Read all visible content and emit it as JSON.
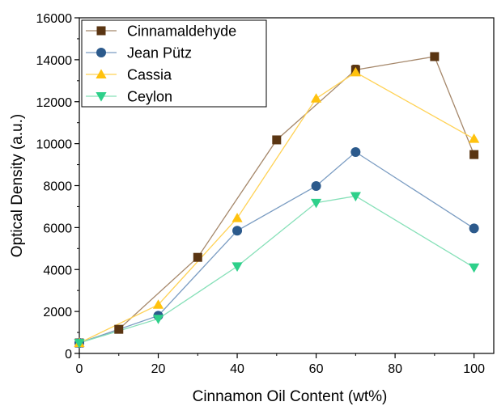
{
  "chart_data": {
    "type": "line",
    "xlabel": "Cinnamon Oil Content (wt%)",
    "ylabel": "Optical Density (a.u.)",
    "xlim": [
      0,
      105
    ],
    "ylim": [
      0,
      16000
    ],
    "xticks": [
      "0",
      "20",
      "40",
      "60",
      "80",
      "100"
    ],
    "yticks": [
      "0",
      "2000",
      "4000",
      "6000",
      "8000",
      "10000",
      "12000",
      "14000",
      "16000"
    ],
    "grid": false,
    "legend_position": "top-left",
    "series": [
      {
        "name": "Cinnamaldehyde",
        "marker": "square",
        "color": "#5a3512",
        "line_color": "#a5876a",
        "x": [
          0,
          10,
          30,
          50,
          70,
          90,
          100
        ],
        "y": [
          500,
          1150,
          4580,
          10180,
          13520,
          14150,
          9480
        ]
      },
      {
        "name": "Jean Pütz",
        "marker": "circle",
        "color": "#2c5a8c",
        "line_color": "#7a9cc2",
        "x": [
          0,
          20,
          40,
          60,
          70,
          100
        ],
        "y": [
          500,
          1800,
          5850,
          7980,
          9600,
          5960
        ]
      },
      {
        "name": "Cassia",
        "marker": "triangle-up",
        "color": "#ffc20e",
        "line_color": "#ffd255",
        "x": [
          0,
          20,
          40,
          60,
          70,
          100
        ],
        "y": [
          500,
          2320,
          6450,
          12150,
          13400,
          10230
        ]
      },
      {
        "name": "Ceylon",
        "marker": "triangle-down",
        "color": "#2ed08a",
        "line_color": "#86e0b8",
        "x": [
          0,
          20,
          40,
          60,
          70,
          100
        ],
        "y": [
          500,
          1650,
          4150,
          7180,
          7500,
          4100
        ]
      }
    ]
  }
}
